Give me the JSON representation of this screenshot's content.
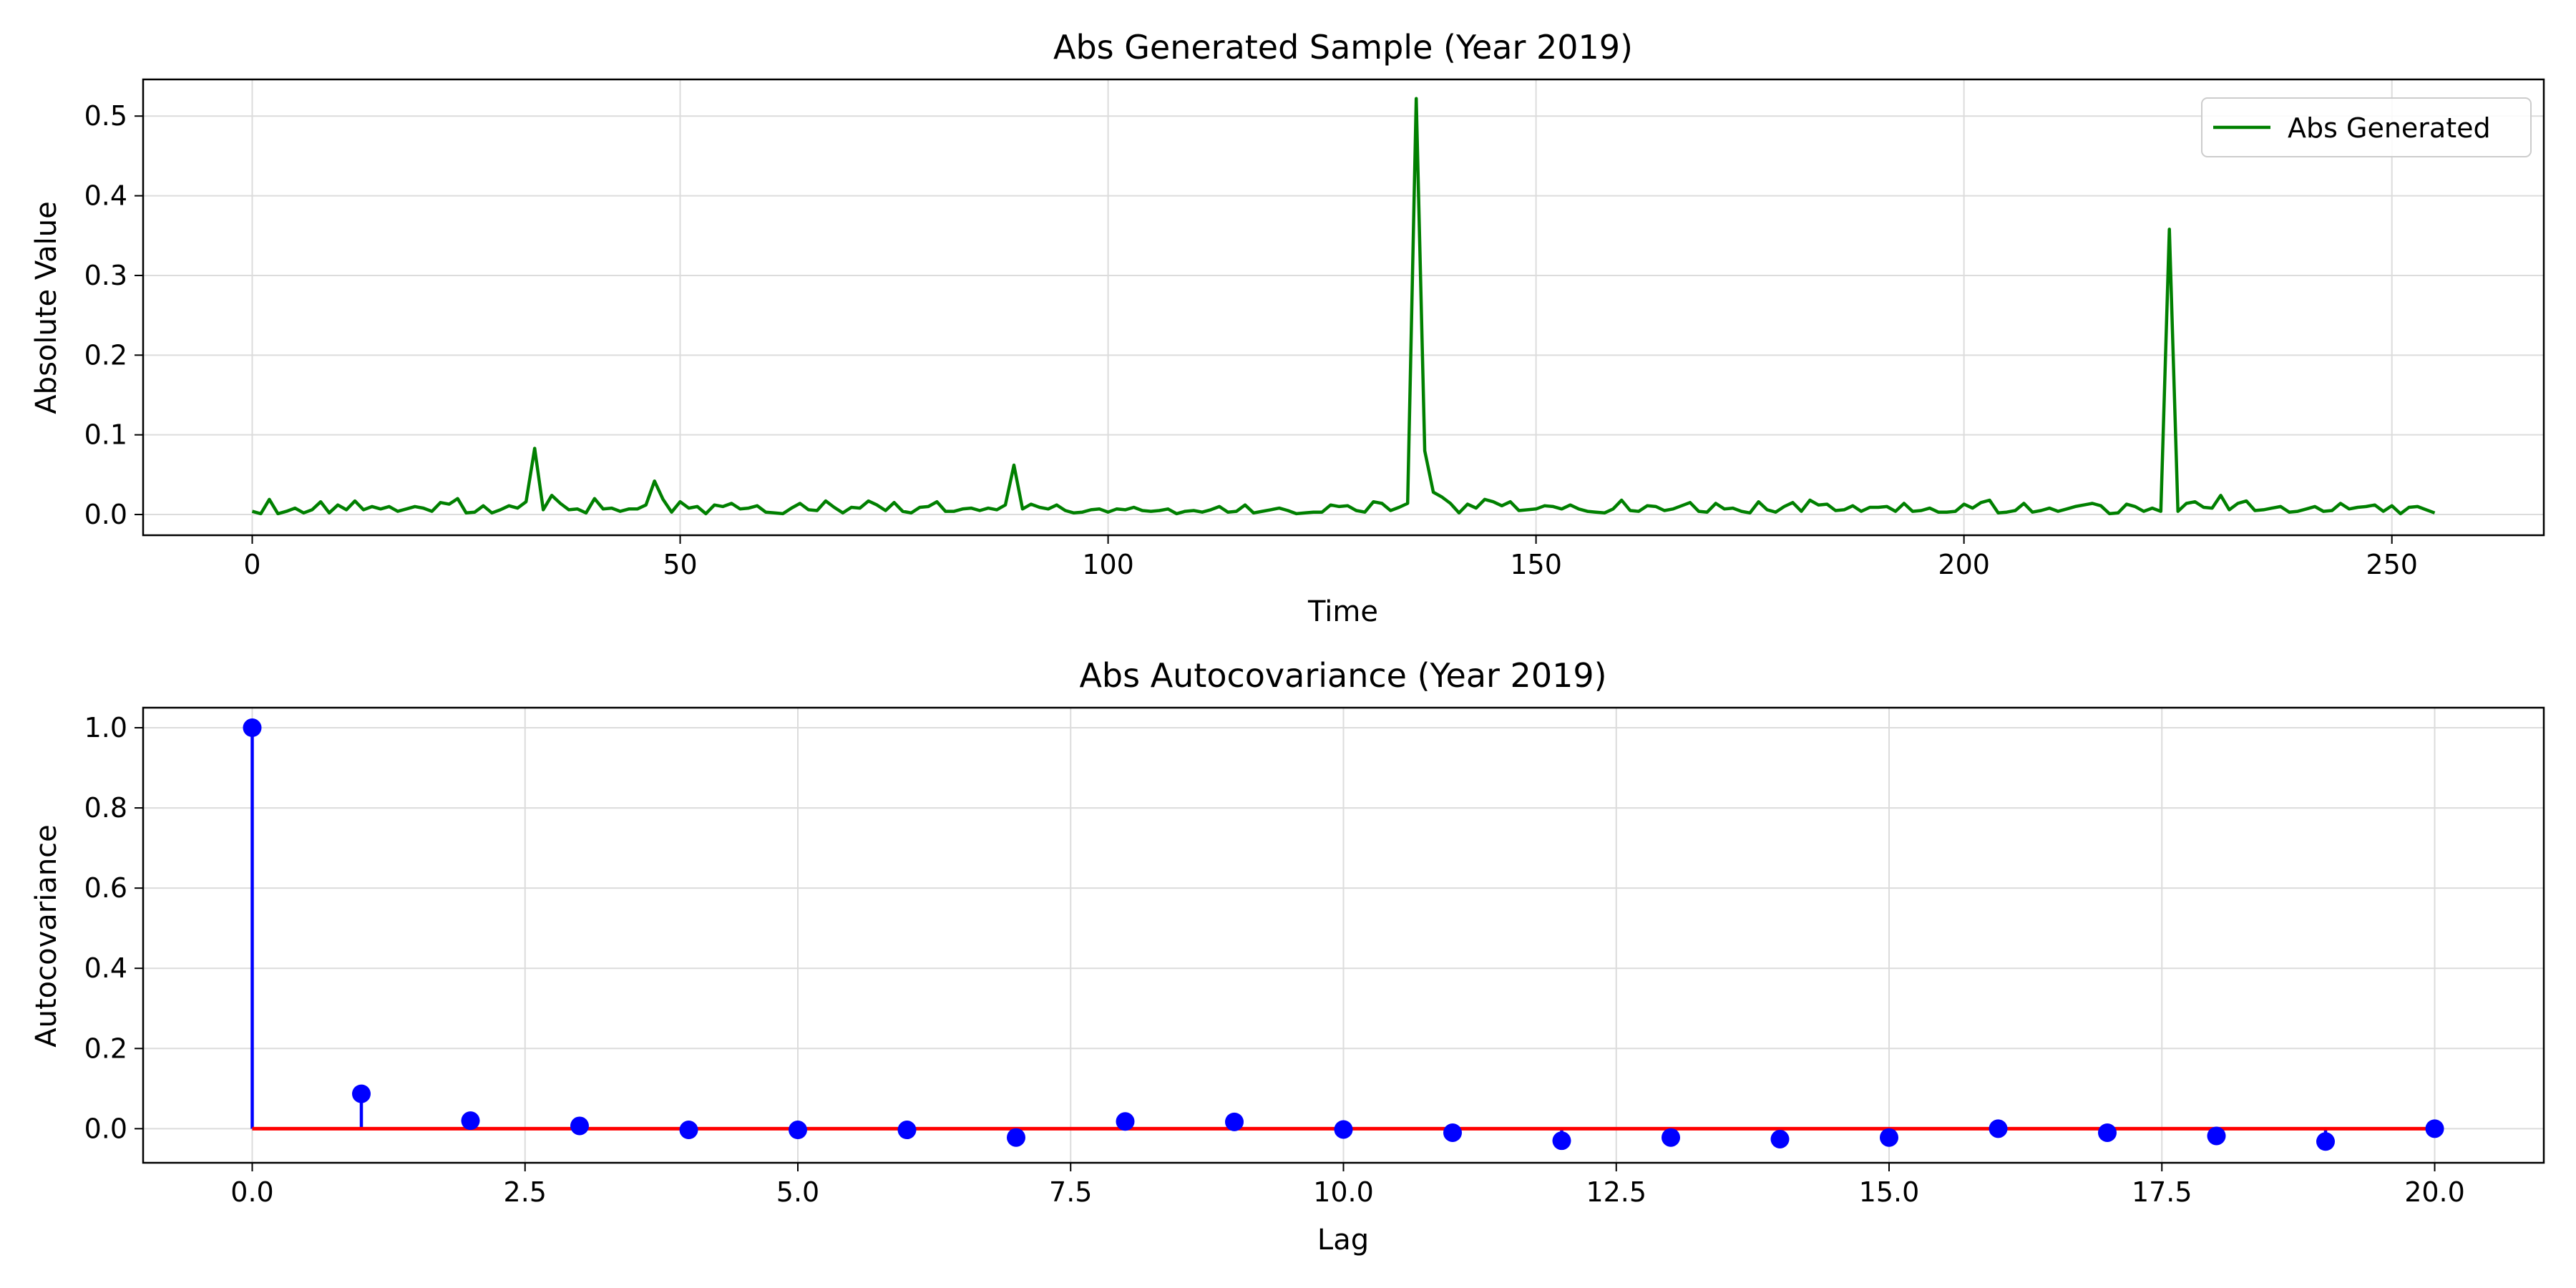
{
  "chart_data": [
    {
      "type": "line",
      "title": "Abs Generated Sample (Year 2019)",
      "xlabel": "Time",
      "ylabel": "Absolute Value",
      "xlim": [
        -12.75,
        267.75
      ],
      "ylim": [
        -0.026,
        0.546
      ],
      "xticks": [
        0,
        50,
        100,
        150,
        200,
        250
      ],
      "yticks": [
        0.0,
        0.1,
        0.2,
        0.3,
        0.4,
        0.5
      ],
      "xtick_labels": [
        "0",
        "50",
        "100",
        "150",
        "200",
        "250"
      ],
      "ytick_labels": [
        "0.0",
        "0.1",
        "0.2",
        "0.3",
        "0.4",
        "0.5"
      ],
      "grid": true,
      "legend_position": "top-right",
      "series": [
        {
          "name": "Abs Generated",
          "color": "#008000",
          "x_start": 0,
          "values": [
            0.004,
            0.001,
            0.019,
            0.001,
            0.004,
            0.008,
            0.002,
            0.006,
            0.016,
            0.002,
            0.012,
            0.006,
            0.017,
            0.006,
            0.01,
            0.007,
            0.01,
            0.004,
            0.007,
            0.01,
            0.008,
            0.004,
            0.015,
            0.013,
            0.02,
            0.002,
            0.003,
            0.011,
            0.002,
            0.006,
            0.011,
            0.008,
            0.016,
            0.083,
            0.006,
            0.024,
            0.014,
            0.006,
            0.007,
            0.002,
            0.02,
            0.007,
            0.008,
            0.004,
            0.007,
            0.007,
            0.012,
            0.042,
            0.019,
            0.003,
            0.016,
            0.008,
            0.01,
            0.001,
            0.012,
            0.01,
            0.014,
            0.007,
            0.008,
            0.011,
            0.003,
            0.002,
            0.001,
            0.008,
            0.014,
            0.006,
            0.005,
            0.017,
            0.009,
            0.002,
            0.009,
            0.008,
            0.017,
            0.012,
            0.005,
            0.015,
            0.004,
            0.002,
            0.009,
            0.01,
            0.016,
            0.004,
            0.004,
            0.007,
            0.008,
            0.005,
            0.008,
            0.006,
            0.012,
            0.062,
            0.007,
            0.013,
            0.009,
            0.007,
            0.012,
            0.005,
            0.002,
            0.003,
            0.006,
            0.007,
            0.003,
            0.007,
            0.006,
            0.009,
            0.005,
            0.004,
            0.005,
            0.007,
            0.001,
            0.004,
            0.005,
            0.003,
            0.006,
            0.01,
            0.003,
            0.004,
            0.012,
            0.002,
            0.004,
            0.006,
            0.008,
            0.005,
            0.001,
            0.002,
            0.003,
            0.003,
            0.012,
            0.01,
            0.011,
            0.005,
            0.003,
            0.016,
            0.014,
            0.005,
            0.009,
            0.014,
            0.522,
            0.08,
            0.028,
            0.022,
            0.014,
            0.002,
            0.013,
            0.008,
            0.019,
            0.016,
            0.011,
            0.016,
            0.005,
            0.006,
            0.007,
            0.011,
            0.01,
            0.007,
            0.012,
            0.007,
            0.004,
            0.003,
            0.002,
            0.007,
            0.018,
            0.005,
            0.004,
            0.011,
            0.01,
            0.005,
            0.007,
            0.011,
            0.015,
            0.004,
            0.003,
            0.014,
            0.007,
            0.008,
            0.004,
            0.002,
            0.016,
            0.006,
            0.003,
            0.01,
            0.015,
            0.004,
            0.018,
            0.012,
            0.013,
            0.005,
            0.006,
            0.011,
            0.004,
            0.009,
            0.009,
            0.01,
            0.004,
            0.014,
            0.004,
            0.005,
            0.008,
            0.003,
            0.003,
            0.004,
            0.013,
            0.008,
            0.015,
            0.018,
            0.002,
            0.003,
            0.005,
            0.014,
            0.003,
            0.005,
            0.008,
            0.004,
            0.007,
            0.01,
            0.012,
            0.014,
            0.011,
            0.001,
            0.002,
            0.013,
            0.01,
            0.004,
            0.008,
            0.004,
            0.358,
            0.004,
            0.014,
            0.016,
            0.009,
            0.008,
            0.024,
            0.006,
            0.014,
            0.017,
            0.005,
            0.006,
            0.008,
            0.01,
            0.003,
            0.004,
            0.007,
            0.01,
            0.004,
            0.005,
            0.014,
            0.007,
            0.009,
            0.01,
            0.012,
            0.004,
            0.011,
            0.001,
            0.009,
            0.01,
            0.006,
            0.002
          ]
        }
      ]
    },
    {
      "type": "stem",
      "title": "Abs Autocovariance (Year 2019)",
      "xlabel": "Lag",
      "ylabel": "Autocovariance",
      "xlim": [
        -1.0,
        21.0
      ],
      "ylim": [
        -0.085,
        1.05
      ],
      "xticks": [
        0,
        2.5,
        5,
        7.5,
        10,
        12.5,
        15,
        17.5,
        20
      ],
      "yticks": [
        0.0,
        0.2,
        0.4,
        0.6,
        0.8,
        1.0
      ],
      "xtick_labels": [
        "0.0",
        "2.5",
        "5.0",
        "7.5",
        "10.0",
        "12.5",
        "15.0",
        "17.5",
        "20.0"
      ],
      "ytick_labels": [
        "0.0",
        "0.2",
        "0.4",
        "0.6",
        "0.8",
        "1.0"
      ],
      "grid": true,
      "baseline": 0.0,
      "stem_color": "#0000ff",
      "marker_color": "#0000ff",
      "baseline_color": "#ff0000",
      "series": [
        {
          "x": [
            0,
            1,
            2,
            3,
            4,
            5,
            6,
            7,
            8,
            9,
            10,
            11,
            12,
            13,
            14,
            15,
            16,
            17,
            18,
            19,
            20
          ],
          "values": [
            1.0,
            0.087,
            0.02,
            0.007,
            -0.003,
            -0.003,
            -0.003,
            -0.022,
            0.018,
            0.017,
            -0.002,
            -0.01,
            -0.03,
            -0.022,
            -0.026,
            -0.022,
            0.0,
            -0.01,
            -0.018,
            -0.032,
            0.0
          ]
        }
      ]
    }
  ]
}
